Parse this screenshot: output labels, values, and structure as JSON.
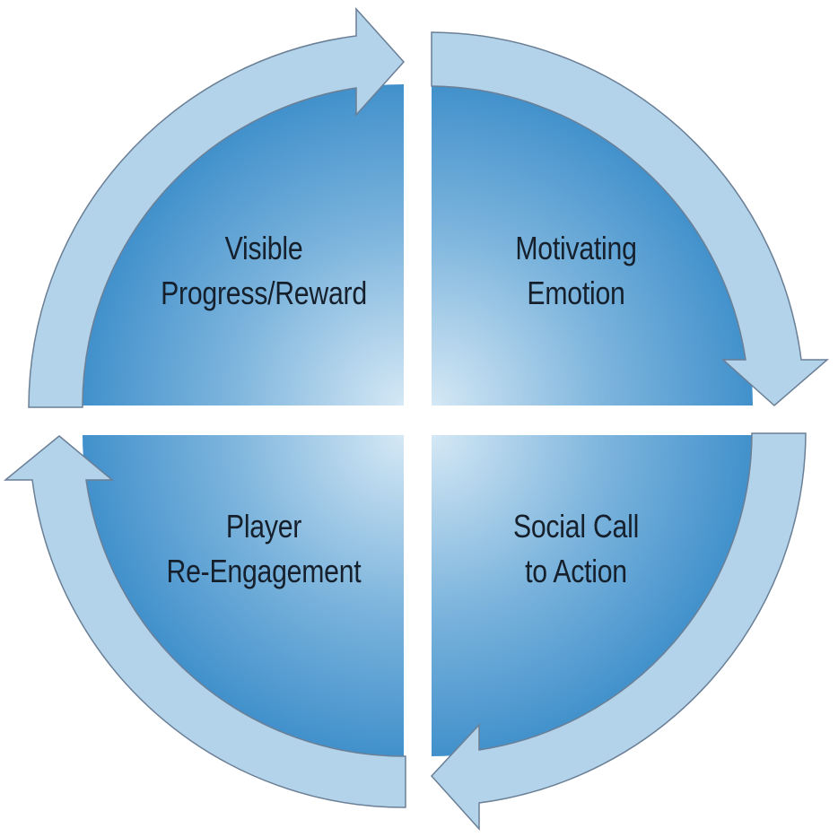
{
  "diagram": {
    "quadrants": [
      {
        "id": "top-left",
        "lines": [
          "Visible",
          "Progress/Reward"
        ]
      },
      {
        "id": "top-right",
        "lines": [
          "Motivating",
          "Emotion"
        ]
      },
      {
        "id": "bottom-right",
        "lines": [
          "Social Call",
          "to Action"
        ]
      },
      {
        "id": "bottom-left",
        "lines": [
          "Player",
          "Re-Engagement"
        ]
      }
    ],
    "flow": "clockwise",
    "colors": {
      "quadrant_dark": "#3f8fcb",
      "quadrant_light": "#d3e7f4",
      "arrow_fill": "#b2d3ea",
      "arrow_stroke": "#6b7f95",
      "text": "#16202c"
    }
  }
}
